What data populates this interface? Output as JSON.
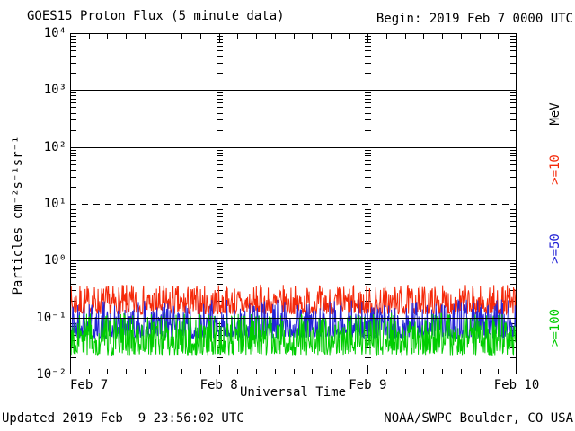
{
  "header": {
    "title": "GOES15 Proton Flux (5 minute data)",
    "begin_label": "Begin: 2019 Feb 7 0000 UTC"
  },
  "footer": {
    "updated": "Updated 2019 Feb  9 23:56:02 UTC",
    "source": "NOAA/SWPC Boulder, CO USA"
  },
  "right_axis": {
    "unit_label": "MeV"
  },
  "chart_data": {
    "type": "line",
    "title": "GOES15 Proton Flux (5 minute data)",
    "xlabel": "Universal Time",
    "ylabel": "Particles cm⁻²s⁻¹sr⁻¹",
    "y_scale": "log",
    "ylim": [
      0.01,
      10000
    ],
    "y_ticks": [
      "10⁴",
      "10³",
      "10²",
      "10¹",
      "10⁰",
      "10⁻¹",
      "10⁻²"
    ],
    "y_tick_exponents": [
      4,
      3,
      2,
      1,
      0,
      -1,
      -2
    ],
    "x_ticks": [
      "Feb 7",
      "Feb 8",
      "Feb 9",
      "Feb 10"
    ],
    "x_start": "2019 Feb 7 0000 UTC",
    "x_end": "2019 Feb 10 0000 UTC",
    "days": 3,
    "points_per_day": 288,
    "minutes_per_point": 5,
    "x_minor_ticks_per_day": 8,
    "grid": {
      "solid_decade_lines": [
        3,
        2,
        0,
        -1
      ],
      "dashed_decade_lines": [
        1
      ],
      "interior_day_tick_columns": [
        "Feb 8",
        "Feb 9"
      ]
    },
    "series": [
      {
        "key": "ge10",
        "name": ">=10",
        "unit": "MeV",
        "color": "#f5290a",
        "approx_floor": 0.12,
        "approx_median": 0.17,
        "approx_peak": 0.38,
        "gen": {
          "seed": 7,
          "log_min": -0.94,
          "log_span": 0.52,
          "pow": 1.8
        }
      },
      {
        "key": "ge50",
        "name": ">=50",
        "unit": "MeV",
        "color": "#2424d6",
        "approx_floor": 0.045,
        "approx_median": 0.075,
        "approx_peak": 0.2,
        "gen": {
          "seed": 21,
          "log_min": -1.36,
          "log_span": 0.68,
          "pow": 1.9
        }
      },
      {
        "key": "ge100",
        "name": ">=100",
        "unit": "MeV",
        "color": "#00cd00",
        "approx_floor": 0.022,
        "approx_median": 0.045,
        "approx_peak": 0.12,
        "gen": {
          "seed": 40,
          "log_min": -1.66,
          "log_span": 0.74,
          "pow": 1.5
        }
      }
    ]
  }
}
